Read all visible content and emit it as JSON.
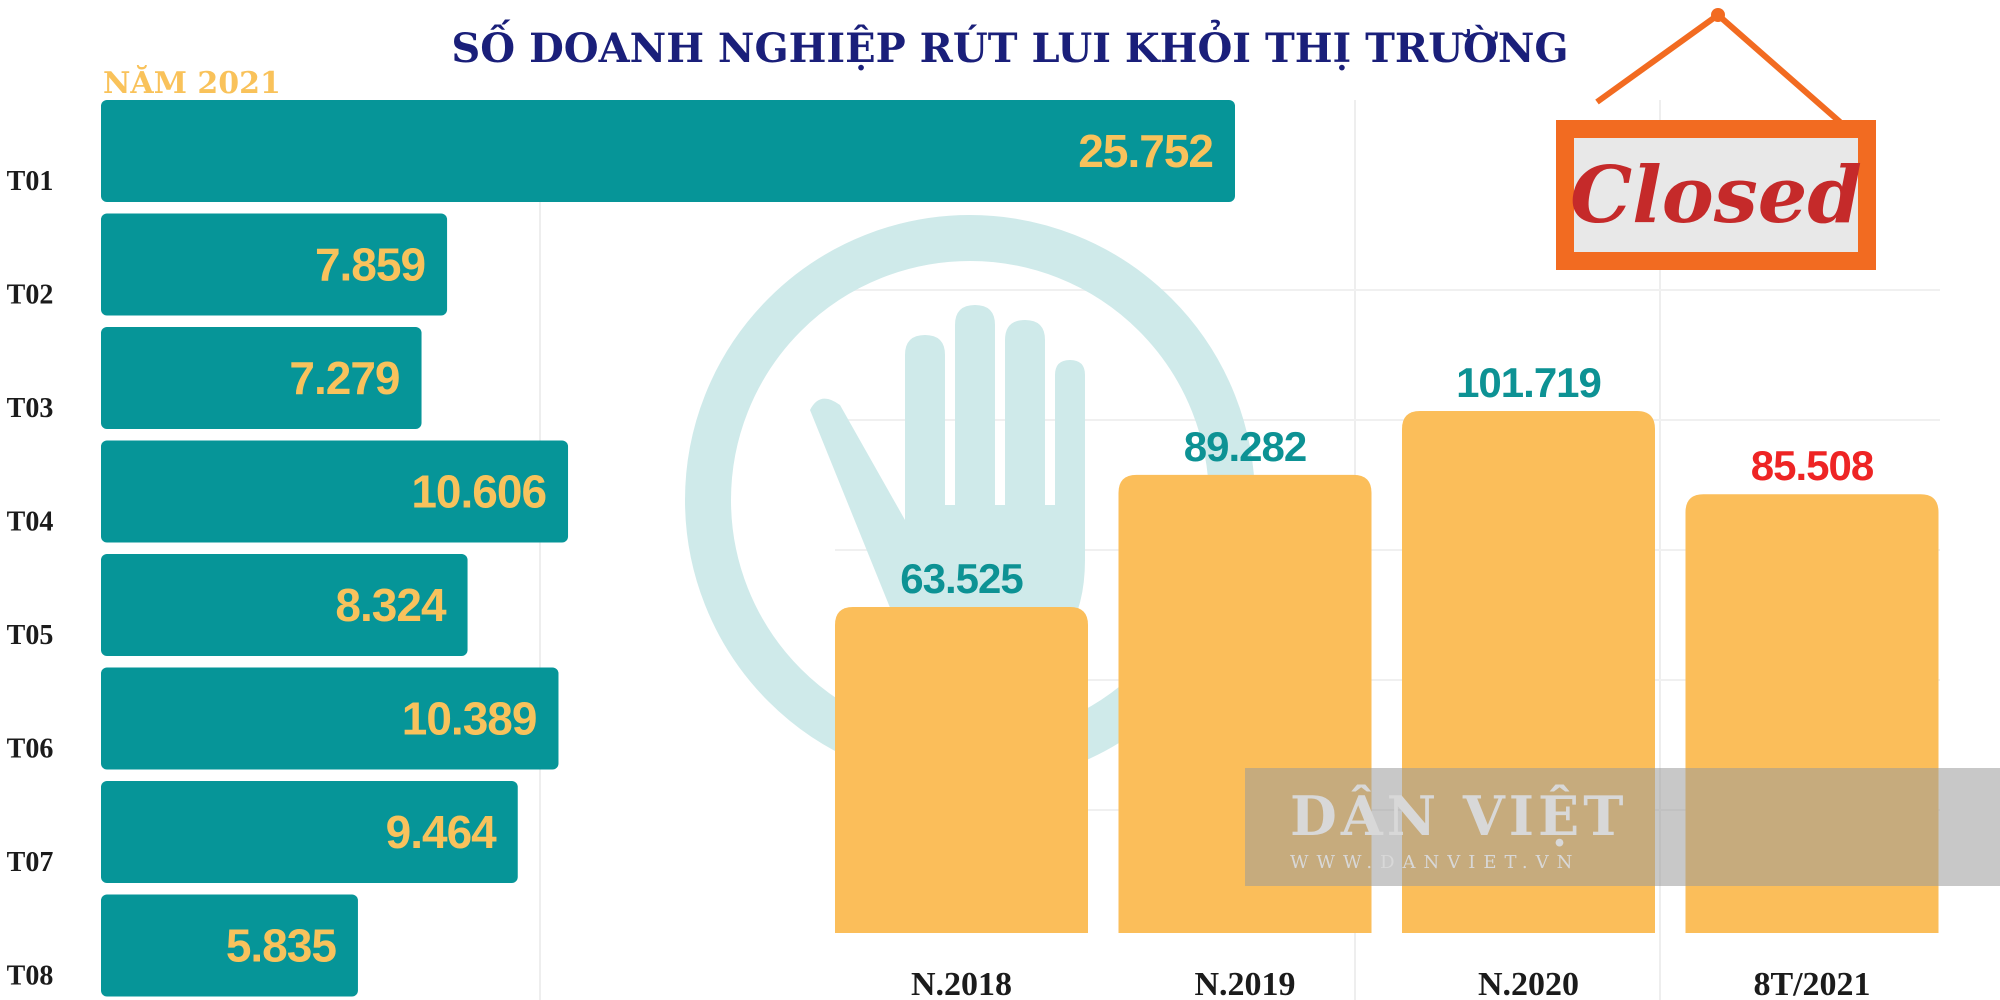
{
  "title": "SỐ DOANH NGHIỆP RÚT LUI KHỎI THỊ TRƯỜNG",
  "colors": {
    "title": "#1a1f7a",
    "monthly_bar": "#069598",
    "monthly_value": "#f8c25c",
    "yearly_bar": "#fbbe5a",
    "yearly_value": "#0d9294",
    "yearly_value_highlight": "#ee2424",
    "closed_sign": "#f26b21",
    "stop_hand": "#cfeaea"
  },
  "icons": {
    "stop_hand": "stop-hand-icon",
    "closed_sign": "closed-sign-icon"
  },
  "closed_sign": {
    "text": "Closed"
  },
  "watermark": {
    "name": "DÂN VIỆT",
    "url": "WWW.DANVIET.VN"
  },
  "chart_data": [
    {
      "type": "bar",
      "orientation": "horizontal",
      "title": "NĂM 2021",
      "categories": [
        "T01",
        "T02",
        "T03",
        "T04",
        "T05",
        "T06",
        "T07",
        "T08"
      ],
      "values": [
        25752,
        7859,
        7279,
        10606,
        8324,
        10389,
        9464,
        5835
      ],
      "value_labels": [
        "25.752",
        "7.859",
        "7.279",
        "10.606",
        "8.324",
        "10.389",
        "9.464",
        "5.835"
      ],
      "xlim": [
        0,
        30000
      ],
      "grid": true
    },
    {
      "type": "bar",
      "orientation": "vertical",
      "categories": [
        "N.2018",
        "N.2019",
        "N.2020",
        "8T/2021"
      ],
      "values": [
        63525,
        89282,
        101719,
        85508
      ],
      "value_labels": [
        "63.525",
        "89.282",
        "101.719",
        "85.508"
      ],
      "ylim": [
        0,
        120000
      ],
      "grid": true
    }
  ]
}
